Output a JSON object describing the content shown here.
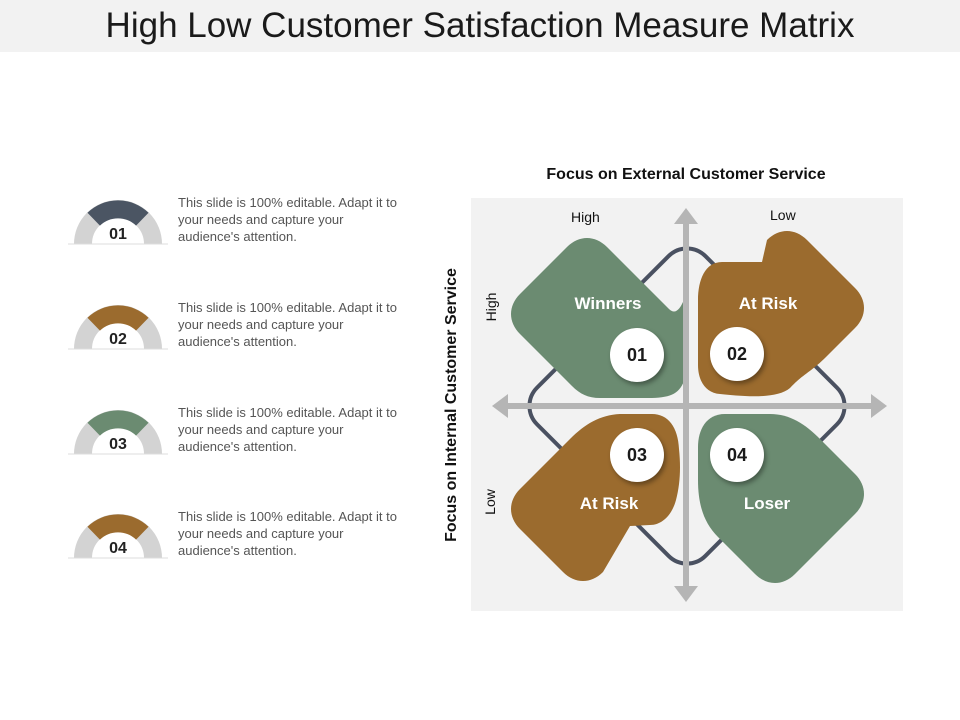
{
  "title": "High Low Customer Satisfaction Measure Matrix",
  "colors": {
    "slate": "#4b5563",
    "brown": "#9b6b2e",
    "green": "#6b8b71",
    "gray": "#d3d3d3",
    "axis": "#b5b5b5"
  },
  "items": [
    {
      "number": "01",
      "color": "slate",
      "text": "This slide is 100% editable. Adapt it to your needs and capture your audience's attention."
    },
    {
      "number": "02",
      "color": "brown",
      "text": "This slide is 100% editable. Adapt it to your needs and capture your audience's attention."
    },
    {
      "number": "03",
      "color": "green",
      "text": "This slide is 100% editable. Adapt it to your needs and capture your audience's attention."
    },
    {
      "number": "04",
      "color": "brown",
      "text": "This slide is 100% editable. Adapt it to your needs and capture your audience's attention."
    }
  ],
  "matrix": {
    "x_title": "Focus on External Customer Service",
    "y_title": "Focus on Internal Customer Service",
    "x_high": "High",
    "x_low": "Low",
    "y_high": "High",
    "y_low": "Low",
    "quadrants": [
      {
        "number": "01",
        "label": "Winners",
        "color": "green"
      },
      {
        "number": "02",
        "label": "At Risk",
        "color": "brown"
      },
      {
        "number": "03",
        "label": "At Risk",
        "color": "brown"
      },
      {
        "number": "04",
        "label": "Loser",
        "color": "green"
      }
    ]
  }
}
